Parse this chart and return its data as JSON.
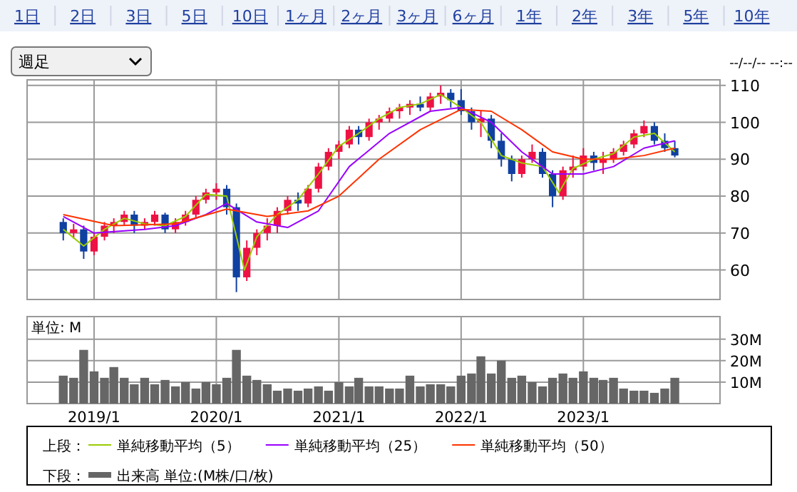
{
  "chart_data": [
    {
      "type": "candlestick",
      "legend_title": "上段：",
      "legend": "bottom",
      "grid": true,
      "tick_labels": "y",
      "annotations": [
        "1日",
        "2日",
        "3日",
        "5日",
        "10日",
        "1ヶ月",
        "2ヶ月",
        "3ヶ月",
        "6ヶ月",
        "1年",
        "2年",
        "3年",
        "5年",
        "10年",
        "週足",
        "--/--/-- --:--"
      ],
      "xlim": [
        "2018-06-15",
        "2024-02-13"
      ],
      "xticks": [
        {
          "value": "2019-01",
          "label": null
        },
        {
          "value": "2020-01",
          "label": null
        },
        {
          "value": "2021-01",
          "label": null
        },
        {
          "value": "2022-01",
          "label": null
        },
        {
          "value": "2023-01",
          "label": null
        }
      ],
      "ylim": [
        52,
        111.5
      ],
      "yticks": [
        60,
        70,
        80,
        90,
        100,
        110
      ],
      "x": [
        "2018-10",
        "2018-11",
        "2018-12",
        "2019-01",
        "2019-02",
        "2019-03",
        "2019-04",
        "2019-05",
        "2019-06",
        "2019-07",
        "2019-08",
        "2019-09",
        "2019-10",
        "2019-11",
        "2019-12",
        "2020-01",
        "2020-02",
        "2020-03",
        "2020-04",
        "2020-05",
        "2020-06",
        "2020-07",
        "2020-08",
        "2020-09",
        "2020-10",
        "2020-11",
        "2020-12",
        "2021-01",
        "2021-02",
        "2021-03",
        "2021-04",
        "2021-05",
        "2021-06",
        "2021-07",
        "2021-08",
        "2021-09",
        "2021-10",
        "2021-11",
        "2021-12",
        "2022-01",
        "2022-02",
        "2022-03",
        "2022-04",
        "2022-05",
        "2022-06",
        "2022-07",
        "2022-08",
        "2022-09",
        "2022-10",
        "2022-11",
        "2022-12",
        "2023-01",
        "2023-02",
        "2023-03",
        "2023-04",
        "2023-05",
        "2023-06",
        "2023-07",
        "2023-08",
        "2023-09",
        "2023-10"
      ],
      "ohlc": [
        [
          73,
          74,
          68,
          70
        ],
        [
          70,
          72.5,
          68.5,
          71
        ],
        [
          71,
          72,
          63,
          65
        ],
        [
          65,
          70,
          64,
          69
        ],
        [
          69,
          73,
          68,
          72
        ],
        [
          72,
          74,
          70,
          73
        ],
        [
          73,
          76,
          72,
          75
        ],
        [
          75,
          76,
          70,
          72
        ],
        [
          72,
          74,
          71,
          73
        ],
        [
          73,
          76,
          72,
          75
        ],
        [
          75,
          75.5,
          70,
          71
        ],
        [
          71,
          74,
          70,
          73
        ],
        [
          73,
          76,
          72,
          75
        ],
        [
          75,
          80,
          74,
          79
        ],
        [
          79,
          82,
          78,
          81
        ],
        [
          81,
          83.5,
          79,
          82
        ],
        [
          82,
          83,
          75,
          77
        ],
        [
          77,
          78,
          54,
          58
        ],
        [
          58,
          68,
          57,
          66
        ],
        [
          66,
          71,
          64,
          70
        ],
        [
          70,
          74,
          68,
          72
        ],
        [
          72,
          77,
          70,
          76
        ],
        [
          76,
          80,
          75,
          79
        ],
        [
          79,
          81,
          76,
          78
        ],
        [
          78,
          83,
          77,
          82
        ],
        [
          82,
          89,
          81,
          88
        ],
        [
          88,
          93,
          87,
          92
        ],
        [
          92,
          95,
          90,
          94
        ],
        [
          94,
          99,
          93,
          98
        ],
        [
          98,
          99,
          94,
          96
        ],
        [
          96,
          101,
          95,
          100
        ],
        [
          100,
          102,
          98,
          101
        ],
        [
          101,
          104,
          100,
          103
        ],
        [
          103,
          105,
          101,
          104
        ],
        [
          104,
          106,
          102,
          105
        ],
        [
          105,
          107,
          103,
          104
        ],
        [
          104,
          108,
          103,
          107
        ],
        [
          107,
          110,
          105,
          108
        ],
        [
          108,
          109,
          104,
          106
        ],
        [
          106,
          109,
          102,
          103
        ],
        [
          103,
          104,
          98,
          100
        ],
        [
          100,
          103,
          96,
          101
        ],
        [
          101,
          102,
          93,
          95
        ],
        [
          95,
          97,
          88,
          90
        ],
        [
          90,
          91,
          84,
          86
        ],
        [
          86,
          91,
          85,
          90
        ],
        [
          90,
          94,
          89,
          92
        ],
        [
          92,
          93,
          85,
          86
        ],
        [
          86,
          87,
          77,
          80
        ],
        [
          80,
          88,
          79,
          87
        ],
        [
          87,
          91,
          85,
          88
        ],
        [
          88,
          93,
          87,
          91
        ],
        [
          91,
          92,
          87,
          89
        ],
        [
          89,
          92,
          86,
          90
        ],
        [
          90,
          93,
          89,
          92
        ],
        [
          92,
          95,
          91,
          94
        ],
        [
          94,
          98,
          93,
          97
        ],
        [
          97,
          100.5,
          96,
          99
        ],
        [
          99,
          100,
          94,
          95
        ],
        [
          95,
          97,
          92,
          93
        ],
        [
          93,
          95,
          90.5,
          91
        ]
      ],
      "colors": [
        "#1040a0",
        "#ee1144",
        "#1040a0",
        "#ee1144",
        "#ee1144",
        "#ee1144",
        "#ee1144",
        "#1040a0",
        "#ee1144",
        "#ee1144",
        "#1040a0",
        "#ee1144",
        "#ee1144",
        "#ee1144",
        "#ee1144",
        "#ee1144",
        "#1040a0",
        "#1040a0",
        "#ee1144",
        "#ee1144",
        "#ee1144",
        "#ee1144",
        "#ee1144",
        "#1040a0",
        "#ee1144",
        "#ee1144",
        "#ee1144",
        "#ee1144",
        "#ee1144",
        "#1040a0",
        "#ee1144",
        "#ee1144",
        "#ee1144",
        "#ee1144",
        "#ee1144",
        "#1040a0",
        "#ee1144",
        "#ee1144",
        "#1040a0",
        "#1040a0",
        "#1040a0",
        "#ee1144",
        "#1040a0",
        "#1040a0",
        "#1040a0",
        "#ee1144",
        "#ee1144",
        "#1040a0",
        "#1040a0",
        "#ee1144",
        "#ee1144",
        "#ee1144",
        "#1040a0",
        "#ee1144",
        "#ee1144",
        "#ee1144",
        "#ee1144",
        "#ee1144",
        "#1040a0",
        "#1040a0",
        "#1040a0"
      ],
      "series": [
        {
          "type": "line",
          "name": "単純移動平均（5）",
          "color": "#99cc00",
          "x": [
            "2018-10",
            "2018-12",
            "2019-02",
            "2019-04",
            "2019-06",
            "2019-08",
            "2019-10",
            "2019-12",
            "2020-02",
            "2020-03-25",
            "2020-05",
            "2020-07",
            "2020-09",
            "2020-11",
            "2021-01",
            "2021-03",
            "2021-05",
            "2021-07",
            "2021-09",
            "2021-11",
            "2022-01",
            "2022-03",
            "2022-05",
            "2022-07",
            "2022-09",
            "2022-10-20",
            "2022-12",
            "2023-02",
            "2023-04",
            "2023-06",
            "2023-08",
            "2023-10"
          ],
          "values": [
            71,
            66.5,
            71,
            74,
            72.5,
            72,
            74.5,
            80.5,
            80,
            60,
            69,
            75,
            79,
            86,
            93.5,
            97,
            101,
            104,
            105,
            107.5,
            104,
            100,
            91,
            89,
            88,
            81,
            87.5,
            90,
            91.5,
            96,
            97,
            92
          ]
        },
        {
          "type": "line",
          "name": "単純移動平均（25）",
          "color": "#9900ff",
          "x": [
            "2018-10",
            "2019-01",
            "2019-06",
            "2019-09",
            "2019-12",
            "2020-02",
            "2020-05",
            "2020-08",
            "2020-11",
            "2021-02",
            "2021-06",
            "2021-10",
            "2022-01",
            "2022-04",
            "2022-07",
            "2022-10",
            "2023-01",
            "2023-04",
            "2023-07",
            "2023-10"
          ],
          "values": [
            74.5,
            70,
            71,
            72,
            75,
            78,
            73,
            71.5,
            76,
            88,
            97,
            103,
            104,
            100,
            92,
            86,
            86,
            88,
            93,
            95
          ]
        },
        {
          "type": "line",
          "name": "単純移動平均（50）",
          "color": "#ff3300",
          "x": [
            "2018-10",
            "2019-03",
            "2019-09",
            "2020-02",
            "2020-06",
            "2020-10",
            "2021-01",
            "2021-05",
            "2021-09",
            "2022-01",
            "2022-04",
            "2022-07",
            "2022-10",
            "2023-01",
            "2023-04",
            "2023-07",
            "2023-10"
          ],
          "values": [
            75,
            72,
            72.5,
            76.5,
            74.5,
            76,
            80,
            90,
            98,
            103.5,
            103,
            98,
            92,
            90,
            90,
            91,
            93
          ]
        }
      ]
    },
    {
      "type": "bar",
      "legend_title": "下段：",
      "legend": "bottom",
      "grid": true,
      "annotations": [
        "単位: M"
      ],
      "xlim": [
        "2018-06-15",
        "2024-02-13"
      ],
      "xticks": [
        {
          "value": "2019-01",
          "label": "2019/1"
        },
        {
          "value": "2020-01",
          "label": "2020/1"
        },
        {
          "value": "2021-01",
          "label": "2021/1"
        },
        {
          "value": "2022-01",
          "label": "2022/1"
        },
        {
          "value": "2023-01",
          "label": "2023/1"
        }
      ],
      "ylim": [
        0,
        40.5
      ],
      "yticks": [
        {
          "value": 10,
          "label": "10M"
        },
        {
          "value": 20,
          "label": "20M"
        },
        {
          "value": 30,
          "label": "30M"
        }
      ],
      "x": [
        "2018-10",
        "2018-11",
        "2018-12",
        "2019-01",
        "2019-02",
        "2019-03",
        "2019-04",
        "2019-05",
        "2019-06",
        "2019-07",
        "2019-08",
        "2019-09",
        "2019-10",
        "2019-11",
        "2019-12",
        "2020-01",
        "2020-02",
        "2020-03",
        "2020-04",
        "2020-05",
        "2020-06",
        "2020-07",
        "2020-08",
        "2020-09",
        "2020-10",
        "2020-11",
        "2020-12",
        "2021-01",
        "2021-02",
        "2021-03",
        "2021-04",
        "2021-05",
        "2021-06",
        "2021-07",
        "2021-08",
        "2021-09",
        "2021-10",
        "2021-11",
        "2021-12",
        "2022-01",
        "2022-02",
        "2022-03",
        "2022-04",
        "2022-05",
        "2022-06",
        "2022-07",
        "2022-08",
        "2022-09",
        "2022-10",
        "2022-11",
        "2022-12",
        "2023-01",
        "2023-02",
        "2023-03",
        "2023-04",
        "2023-05",
        "2023-06",
        "2023-07",
        "2023-08",
        "2023-09",
        "2023-10"
      ],
      "series": [
        {
          "name": "出来高 単位:(M株/口/枚)",
          "color": "#666666",
          "values": [
            13,
            12,
            25,
            15,
            12,
            17,
            12,
            9,
            12,
            9,
            11,
            8,
            10,
            7,
            10,
            9,
            12,
            25,
            13,
            11,
            9,
            6,
            7,
            6,
            7,
            8,
            6,
            10,
            8,
            12,
            8,
            8,
            7,
            7,
            13,
            8,
            9,
            9,
            8,
            13,
            14,
            22,
            14,
            20,
            12,
            13,
            10,
            8,
            12,
            14,
            12,
            15,
            12,
            11,
            12,
            7,
            6,
            6,
            5,
            7,
            12
          ]
        }
      ]
    }
  ]
}
